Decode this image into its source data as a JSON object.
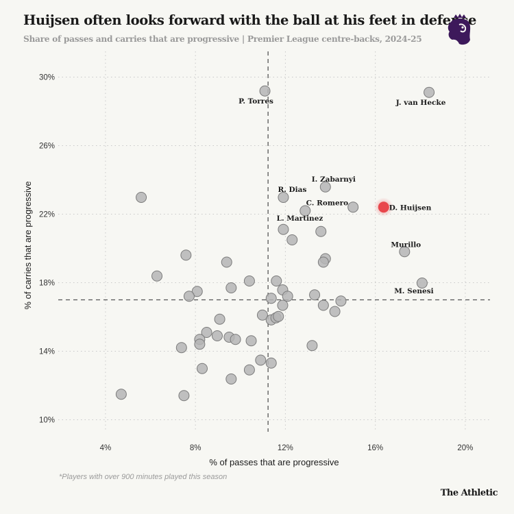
{
  "header": {
    "title": "Huijsen often looks forward with the ball at his feet in defence",
    "subtitle": "Share of passes and carries that are progressive | Premier League centre-backs, 2024-25",
    "logo_icon": "premier-league-lion-icon",
    "logo_color": "#3d195b"
  },
  "footer": {
    "footnote": "*Players with over 900 minutes played this season",
    "brand": "The Athletic"
  },
  "colors": {
    "point_fill": "#b5b5b5",
    "point_stroke": "#7a7a7a",
    "highlight": "#e8474c",
    "reference_line": "#555555",
    "grid": "#c8c8c8"
  },
  "chart_data": {
    "type": "scatter",
    "title": "Huijsen often looks forward with the ball at his feet in defence",
    "subtitle": "Share of passes and carries that are progressive | Premier League centre-backs, 2024-25",
    "xlabel": "% of passes that are progressive",
    "ylabel": "% of carries that are progressive",
    "xlim": [
      1.9,
      21.1
    ],
    "ylim": [
      9.3,
      31.5
    ],
    "xticks": [
      4,
      8,
      12,
      16,
      20
    ],
    "xtick_labels": [
      "4%",
      "8%",
      "12%",
      "16%",
      "20%"
    ],
    "yticks": [
      10,
      14,
      18,
      22,
      26,
      30
    ],
    "ytick_labels": [
      "10%",
      "14%",
      "18%",
      "22%",
      "26%",
      "30%"
    ],
    "grid": true,
    "reference_lines": {
      "x_average": 11.23,
      "y_average": 17.0
    },
    "highlight": "D. Huijsen",
    "points": [
      {
        "x": 11.09,
        "y": 29.19,
        "label": "P. Torres"
      },
      {
        "x": 18.39,
        "y": 29.11,
        "label": "J. van Hecke"
      },
      {
        "x": 13.78,
        "y": 23.59,
        "label": "I. Zabarnyi"
      },
      {
        "x": 11.91,
        "y": 22.98,
        "label": "R. Dias"
      },
      {
        "x": 12.88,
        "y": 22.2,
        "label": ""
      },
      {
        "x": 15.01,
        "y": 22.41,
        "label": "C. Romero"
      },
      {
        "x": 16.37,
        "y": 22.41,
        "label": "D. Huijsen"
      },
      {
        "x": 11.91,
        "y": 21.11,
        "label": "L. Martinez"
      },
      {
        "x": 13.58,
        "y": 20.99,
        "label": ""
      },
      {
        "x": 12.3,
        "y": 20.5,
        "label": ""
      },
      {
        "x": 13.78,
        "y": 19.4,
        "label": ""
      },
      {
        "x": 13.69,
        "y": 19.2,
        "label": ""
      },
      {
        "x": 17.3,
        "y": 19.81,
        "label": "Murillo"
      },
      {
        "x": 18.08,
        "y": 17.98,
        "label": "M. Senesi"
      },
      {
        "x": 5.59,
        "y": 22.98,
        "label": ""
      },
      {
        "x": 7.58,
        "y": 19.61,
        "label": ""
      },
      {
        "x": 6.29,
        "y": 18.39,
        "label": ""
      },
      {
        "x": 9.39,
        "y": 19.2,
        "label": ""
      },
      {
        "x": 10.4,
        "y": 18.1,
        "label": ""
      },
      {
        "x": 9.59,
        "y": 17.7,
        "label": ""
      },
      {
        "x": 8.08,
        "y": 17.49,
        "label": ""
      },
      {
        "x": 7.72,
        "y": 17.21,
        "label": ""
      },
      {
        "x": 11.6,
        "y": 18.1,
        "label": ""
      },
      {
        "x": 11.37,
        "y": 17.09,
        "label": ""
      },
      {
        "x": 11.88,
        "y": 17.58,
        "label": ""
      },
      {
        "x": 12.1,
        "y": 17.21,
        "label": ""
      },
      {
        "x": 11.88,
        "y": 16.68,
        "label": ""
      },
      {
        "x": 13.3,
        "y": 17.29,
        "label": ""
      },
      {
        "x": 13.69,
        "y": 16.68,
        "label": ""
      },
      {
        "x": 14.47,
        "y": 16.93,
        "label": ""
      },
      {
        "x": 14.2,
        "y": 16.32,
        "label": ""
      },
      {
        "x": 9.08,
        "y": 15.87,
        "label": ""
      },
      {
        "x": 10.98,
        "y": 16.11,
        "label": ""
      },
      {
        "x": 11.37,
        "y": 15.83,
        "label": ""
      },
      {
        "x": 11.58,
        "y": 15.95,
        "label": ""
      },
      {
        "x": 11.69,
        "y": 16.03,
        "label": ""
      },
      {
        "x": 8.5,
        "y": 15.1,
        "label": ""
      },
      {
        "x": 8.97,
        "y": 14.9,
        "label": ""
      },
      {
        "x": 9.5,
        "y": 14.82,
        "label": ""
      },
      {
        "x": 9.78,
        "y": 14.69,
        "label": ""
      },
      {
        "x": 10.48,
        "y": 14.61,
        "label": ""
      },
      {
        "x": 8.19,
        "y": 14.69,
        "label": ""
      },
      {
        "x": 8.19,
        "y": 14.41,
        "label": ""
      },
      {
        "x": 7.38,
        "y": 14.21,
        "label": ""
      },
      {
        "x": 10.9,
        "y": 13.48,
        "label": ""
      },
      {
        "x": 11.37,
        "y": 13.31,
        "label": ""
      },
      {
        "x": 13.19,
        "y": 14.33,
        "label": ""
      },
      {
        "x": 8.3,
        "y": 12.99,
        "label": ""
      },
      {
        "x": 10.4,
        "y": 12.91,
        "label": ""
      },
      {
        "x": 9.59,
        "y": 12.38,
        "label": ""
      },
      {
        "x": 4.7,
        "y": 11.49,
        "label": ""
      },
      {
        "x": 7.49,
        "y": 11.41,
        "label": ""
      }
    ],
    "label_positions": {
      "P. Torres": "below",
      "J. van Hecke": "below",
      "I. Zabarnyi": "above",
      "R. Dias": "above",
      "C. Romero": "above-left",
      "D. Huijsen": "right",
      "L. Martinez": "above",
      "Murillo": "above",
      "M. Senesi": "below"
    }
  }
}
